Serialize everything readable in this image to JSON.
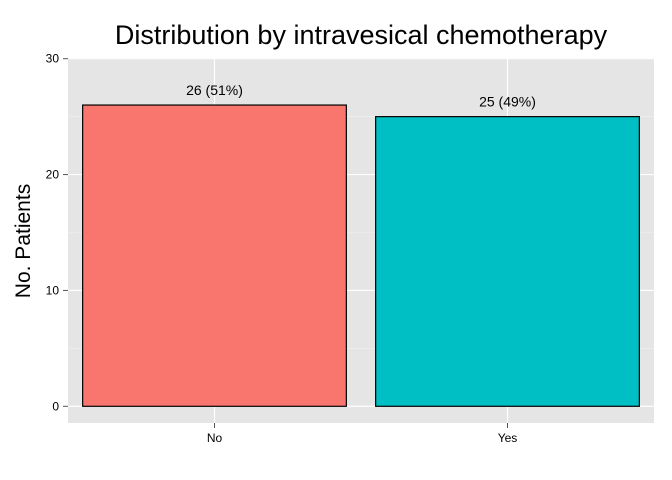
{
  "chart_data": {
    "type": "bar",
    "title": "Distribution by intravesical chemotherapy",
    "xlabel": "",
    "ylabel": "No. Patients",
    "categories": [
      "No",
      "Yes"
    ],
    "values": [
      26,
      25
    ],
    "data_labels": [
      "26 (51%)",
      "25 (49%)"
    ],
    "colors": [
      "#F8766D",
      "#00BFC4"
    ],
    "ylim": [
      0,
      30
    ],
    "yticks": [
      0,
      10,
      20,
      30
    ],
    "ytick_labels": [
      "0",
      "10",
      "20",
      "30"
    ],
    "grid": true,
    "legend": "none"
  }
}
